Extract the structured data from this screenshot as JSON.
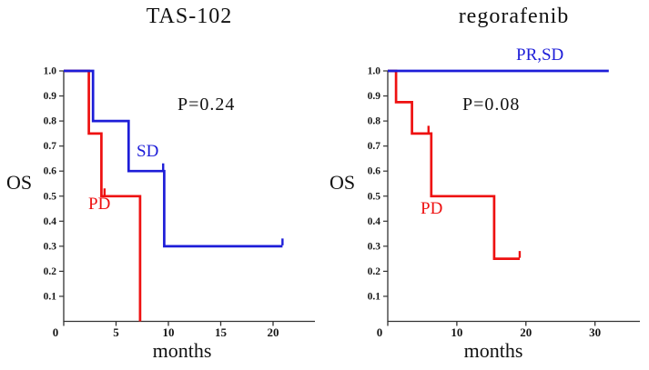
{
  "figure": {
    "background": "#ffffff",
    "axis_color": "#333333",
    "text_color": "#111111",
    "blue": "#1d1dd8",
    "red": "#ee1111"
  },
  "chart_data": [
    {
      "type": "line",
      "variant": "kaplan-meier-step",
      "title": "TAS-102",
      "annotation": "P=0.24",
      "xlabel": "months",
      "ylabel": "OS",
      "xlim": [
        0,
        24
      ],
      "ylim": [
        0,
        1.0
      ],
      "x_ticks": [
        0,
        5,
        10,
        15,
        20
      ],
      "y_ticks": [
        0.1,
        0.2,
        0.3,
        0.4,
        0.5,
        0.6,
        0.7,
        0.8,
        0.9,
        1.0
      ],
      "grid": false,
      "legend_position": "inline-labels",
      "series": [
        {
          "name": "SD",
          "color": "#1d1dd8",
          "steps": [
            [
              0,
              1.0
            ],
            [
              2.8,
              1.0
            ],
            [
              2.8,
              0.8
            ],
            [
              6.2,
              0.8
            ],
            [
              6.2,
              0.6
            ],
            [
              9.6,
              0.6
            ],
            [
              9.6,
              0.3
            ],
            [
              20.9,
              0.3
            ]
          ],
          "censor_marks": [
            [
              9.5,
              0.6
            ],
            [
              20.9,
              0.3
            ]
          ]
        },
        {
          "name": "PD",
          "color": "#ee1111",
          "steps": [
            [
              0,
              1.0
            ],
            [
              2.4,
              1.0
            ],
            [
              2.4,
              0.75
            ],
            [
              3.6,
              0.75
            ],
            [
              3.6,
              0.5
            ],
            [
              7.3,
              0.5
            ],
            [
              7.3,
              0.0
            ]
          ],
          "censor_marks": [
            [
              3.9,
              0.5
            ]
          ]
        }
      ]
    },
    {
      "type": "line",
      "variant": "kaplan-meier-step",
      "title": "regorafenib",
      "annotation": "P=0.08",
      "xlabel": "months",
      "ylabel": "OS",
      "xlim": [
        0,
        36.5
      ],
      "ylim": [
        0,
        1.0
      ],
      "x_ticks": [
        0,
        10,
        20,
        30
      ],
      "y_ticks": [
        0.1,
        0.2,
        0.3,
        0.4,
        0.5,
        0.6,
        0.7,
        0.8,
        0.9,
        1.0
      ],
      "grid": false,
      "legend_position": "inline-labels",
      "series": [
        {
          "name": "PR,SD",
          "color": "#1d1dd8",
          "steps": [
            [
              0,
              1.0
            ],
            [
              32,
              1.0
            ]
          ],
          "censor_marks": []
        },
        {
          "name": "PD",
          "color": "#ee1111",
          "steps": [
            [
              0,
              1.0
            ],
            [
              1.2,
              1.0
            ],
            [
              1.2,
              0.875
            ],
            [
              3.5,
              0.875
            ],
            [
              3.5,
              0.75
            ],
            [
              6.3,
              0.75
            ],
            [
              6.3,
              0.5
            ],
            [
              15.4,
              0.5
            ],
            [
              15.4,
              0.25
            ],
            [
              19.1,
              0.25
            ]
          ],
          "censor_marks": [
            [
              5.9,
              0.75
            ],
            [
              19.1,
              0.25
            ]
          ]
        }
      ]
    }
  ]
}
